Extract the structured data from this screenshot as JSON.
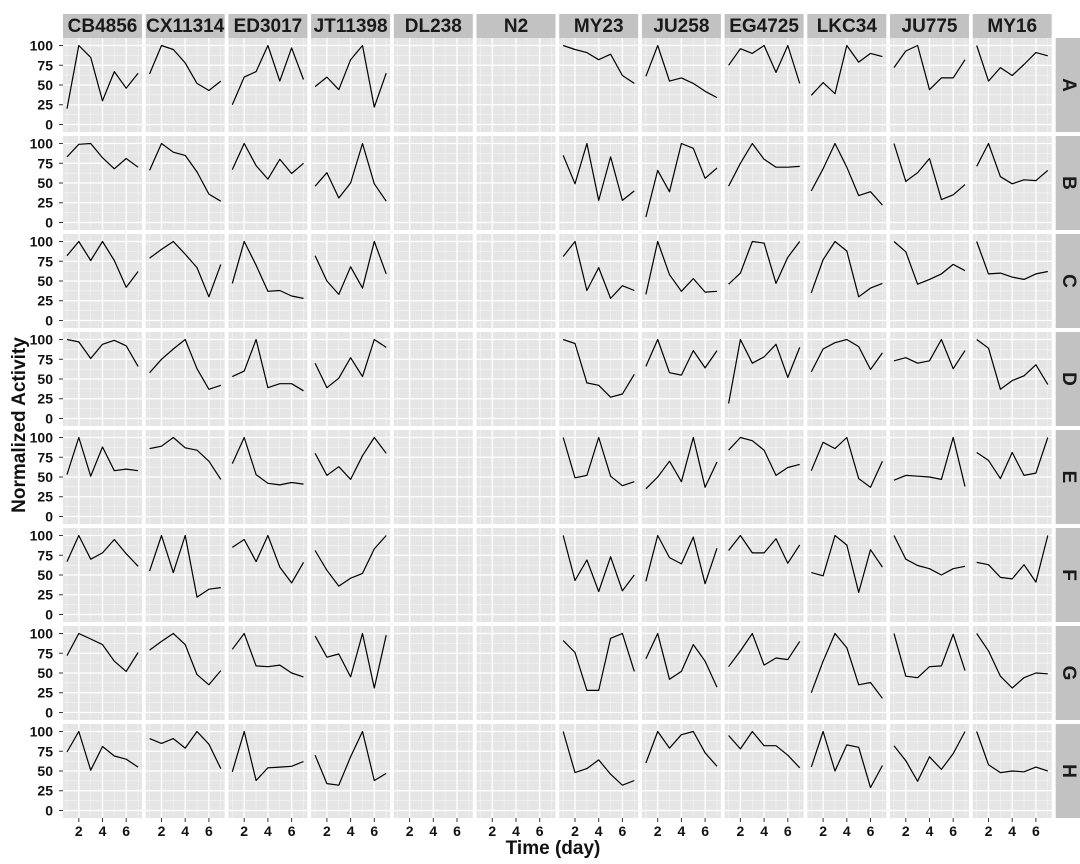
{
  "colors": {
    "panel_bg": "#e5e5e5",
    "grid_major": "#ffffff",
    "grid_minor": "#f2f2f2",
    "strip_bg": "#c2c2c2",
    "line": "#000000",
    "text": "#1a1a1a"
  },
  "chart_data": {
    "type": "line",
    "layout": "facet-grid",
    "xlabel": "Time (day)",
    "ylabel": "Normalized Activity",
    "xlim": [
      1,
      7
    ],
    "ylim": [
      0,
      100
    ],
    "xticks": [
      2,
      4,
      6
    ],
    "yticks": [
      0,
      25,
      50,
      75,
      100
    ],
    "x": [
      1,
      2,
      3,
      4,
      5,
      6,
      7
    ],
    "grid": true,
    "columns": [
      "CB4856",
      "CX11314",
      "ED3017",
      "JT11398",
      "DL238",
      "N2",
      "MY23",
      "JU258",
      "EG4725",
      "LKC34",
      "JU775",
      "MY16"
    ],
    "rows": [
      "A",
      "B",
      "C",
      "D",
      "E",
      "F",
      "G",
      "H"
    ],
    "series": {
      "CB4856": {
        "A": [
          20,
          100,
          85,
          30,
          67,
          46,
          65
        ],
        "B": [
          83,
          99,
          100,
          82,
          68,
          81,
          70
        ],
        "C": [
          82,
          100,
          76,
          100,
          76,
          42,
          62
        ],
        "D": [
          100,
          97,
          76,
          94,
          99,
          92,
          66
        ],
        "E": [
          53,
          100,
          51,
          88,
          58,
          60,
          58
        ],
        "F": [
          67,
          100,
          70,
          78,
          95,
          77,
          61
        ],
        "G": [
          72,
          100,
          93,
          86,
          65,
          52,
          76
        ],
        "H": [
          74,
          100,
          51,
          81,
          69,
          65,
          55
        ]
      },
      "CX11314": {
        "A": [
          64,
          100,
          95,
          78,
          52,
          43,
          55
        ],
        "B": [
          66,
          100,
          89,
          85,
          64,
          36,
          27
        ],
        "C": [
          79,
          90,
          100,
          84,
          67,
          30,
          71
        ],
        "D": [
          58,
          75,
          88,
          100,
          63,
          37,
          42
        ],
        "E": [
          86,
          89,
          100,
          87,
          84,
          70,
          47
        ],
        "F": [
          55,
          100,
          53,
          100,
          22,
          32,
          34
        ],
        "G": [
          79,
          90,
          100,
          86,
          48,
          35,
          53
        ],
        "H": [
          91,
          85,
          91,
          79,
          100,
          84,
          53
        ]
      },
      "ED3017": {
        "A": [
          25,
          60,
          67,
          100,
          55,
          97,
          57
        ],
        "B": [
          67,
          100,
          72,
          55,
          80,
          62,
          75
        ],
        "C": [
          47,
          100,
          70,
          37,
          38,
          31,
          28
        ],
        "D": [
          53,
          60,
          100,
          39,
          44,
          44,
          35
        ],
        "E": [
          67,
          100,
          53,
          42,
          40,
          43,
          41
        ],
        "F": [
          85,
          95,
          67,
          100,
          60,
          40,
          66
        ],
        "G": [
          80,
          100,
          59,
          58,
          60,
          50,
          45
        ],
        "H": [
          49,
          100,
          38,
          54,
          55,
          56,
          62
        ]
      },
      "JT11398": {
        "A": [
          48,
          60,
          44,
          82,
          100,
          22,
          65
        ],
        "B": [
          46,
          63,
          31,
          50,
          100,
          49,
          27
        ],
        "C": [
          82,
          50,
          33,
          68,
          41,
          100,
          59
        ],
        "D": [
          70,
          39,
          51,
          77,
          53,
          100,
          90
        ],
        "E": [
          80,
          52,
          63,
          47,
          77,
          100,
          80
        ],
        "F": [
          81,
          56,
          36,
          46,
          52,
          83,
          100
        ],
        "G": [
          97,
          70,
          74,
          45,
          100,
          31,
          98
        ],
        "H": [
          70,
          34,
          32,
          68,
          100,
          38,
          47
        ]
      },
      "DL238": {
        "A": [],
        "B": [],
        "C": [],
        "D": [],
        "E": [],
        "F": [],
        "G": [],
        "H": []
      },
      "N2": {
        "A": [],
        "B": [],
        "C": [],
        "D": [],
        "E": [],
        "F": [],
        "G": [],
        "H": []
      },
      "MY23": {
        "A": [
          100,
          95,
          91,
          82,
          89,
          62,
          52
        ],
        "B": [
          85,
          49,
          100,
          28,
          83,
          28,
          40
        ],
        "C": [
          81,
          100,
          38,
          67,
          28,
          44,
          38
        ],
        "D": [
          100,
          95,
          45,
          42,
          27,
          31,
          56
        ],
        "E": [
          100,
          49,
          52,
          100,
          51,
          39,
          44
        ],
        "F": [
          100,
          43,
          69,
          29,
          73,
          30,
          50
        ],
        "G": [
          91,
          76,
          28,
          28,
          94,
          100,
          52
        ],
        "H": [
          100,
          48,
          53,
          64,
          46,
          32,
          38
        ]
      },
      "JU258": {
        "A": [
          61,
          100,
          55,
          59,
          52,
          42,
          34
        ],
        "B": [
          7,
          66,
          39,
          100,
          94,
          56,
          69
        ],
        "C": [
          33,
          100,
          58,
          37,
          53,
          36,
          37
        ],
        "D": [
          66,
          100,
          58,
          55,
          86,
          64,
          86
        ],
        "E": [
          35,
          50,
          70,
          44,
          100,
          37,
          69
        ],
        "F": [
          42,
          100,
          72,
          64,
          98,
          39,
          84
        ],
        "G": [
          68,
          100,
          42,
          52,
          86,
          65,
          32
        ],
        "H": [
          60,
          100,
          79,
          96,
          100,
          73,
          56
        ]
      },
      "EG4725": {
        "A": [
          75,
          96,
          90,
          100,
          66,
          100,
          52
        ],
        "B": [
          46,
          75,
          100,
          80,
          70,
          70,
          71
        ],
        "C": [
          46,
          60,
          100,
          98,
          47,
          80,
          100
        ],
        "D": [
          19,
          100,
          70,
          78,
          94,
          52,
          90
        ],
        "E": [
          84,
          100,
          96,
          84,
          52,
          62,
          66
        ],
        "F": [
          81,
          100,
          78,
          78,
          96,
          65,
          88
        ],
        "G": [
          58,
          78,
          100,
          60,
          69,
          67,
          90
        ],
        "H": [
          95,
          78,
          100,
          82,
          82,
          70,
          54
        ]
      },
      "LKC34": {
        "A": [
          37,
          53,
          39,
          100,
          79,
          90,
          86
        ],
        "B": [
          40,
          68,
          100,
          70,
          34,
          39,
          22
        ],
        "C": [
          35,
          77,
          100,
          88,
          30,
          41,
          47
        ],
        "D": [
          59,
          88,
          96,
          100,
          91,
          62,
          83
        ],
        "E": [
          58,
          94,
          86,
          100,
          48,
          37,
          70
        ],
        "F": [
          53,
          49,
          100,
          88,
          28,
          82,
          60
        ],
        "G": [
          25,
          65,
          100,
          82,
          35,
          38,
          18
        ],
        "H": [
          55,
          100,
          50,
          83,
          80,
          29,
          57
        ]
      },
      "JU775": {
        "A": [
          72,
          93,
          100,
          44,
          59,
          59,
          82
        ],
        "B": [
          100,
          52,
          63,
          81,
          29,
          35,
          48
        ],
        "C": [
          100,
          87,
          46,
          52,
          59,
          71,
          63
        ],
        "D": [
          73,
          77,
          70,
          73,
          100,
          63,
          86
        ],
        "E": [
          46,
          52,
          51,
          50,
          47,
          100,
          38
        ],
        "F": [
          100,
          70,
          62,
          58,
          50,
          58,
          61
        ],
        "G": [
          100,
          46,
          44,
          58,
          59,
          99,
          53
        ],
        "H": [
          82,
          63,
          37,
          68,
          52,
          72,
          100
        ]
      },
      "MY16": {
        "A": [
          100,
          55,
          72,
          62,
          76,
          91,
          87
        ],
        "B": [
          71,
          100,
          58,
          49,
          54,
          53,
          66
        ],
        "C": [
          100,
          59,
          60,
          55,
          52,
          59,
          62
        ],
        "D": [
          100,
          89,
          37,
          48,
          54,
          68,
          43
        ],
        "E": [
          81,
          71,
          48,
          81,
          52,
          55,
          100
        ],
        "F": [
          66,
          63,
          47,
          45,
          63,
          41,
          100
        ],
        "G": [
          100,
          78,
          46,
          31,
          44,
          50,
          49
        ],
        "H": [
          100,
          58,
          48,
          50,
          49,
          55,
          50
        ]
      }
    }
  }
}
